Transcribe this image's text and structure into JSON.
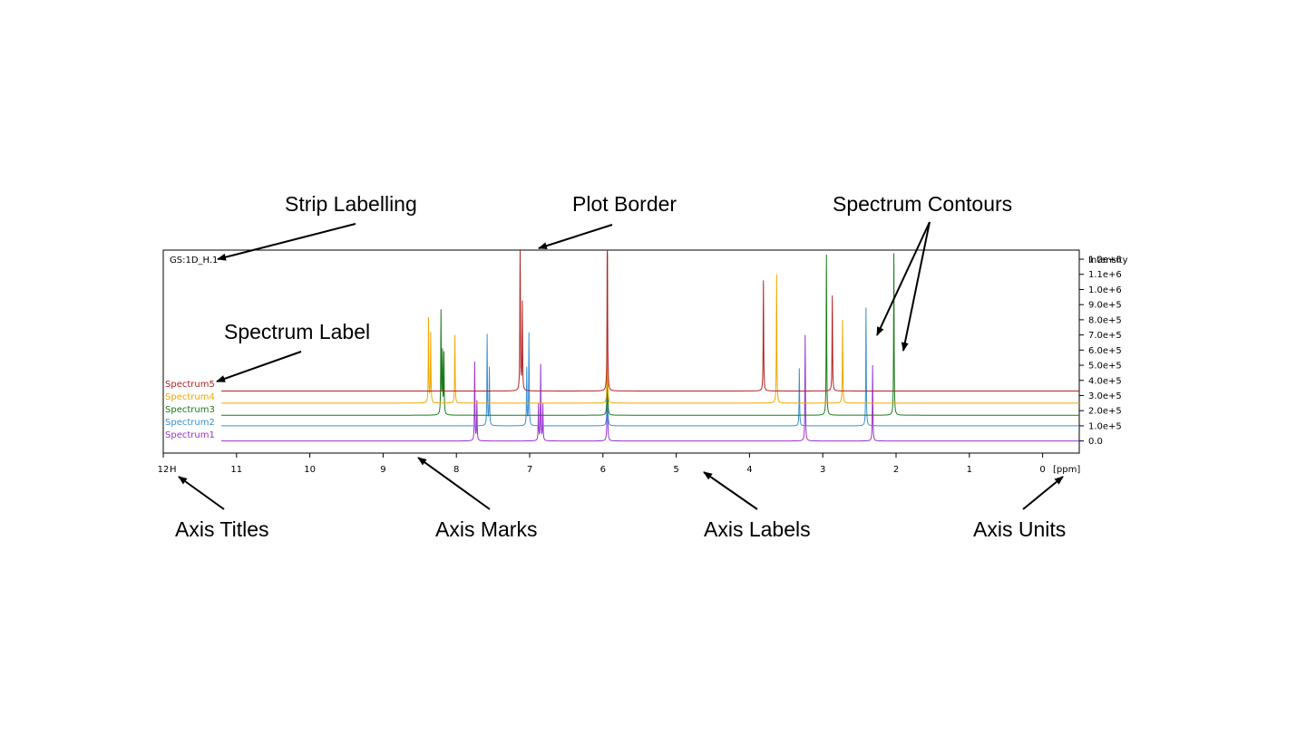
{
  "callouts": {
    "strip_labelling": "Strip Labelling",
    "plot_border": "Plot Border",
    "spectrum_contours": "Spectrum Contours",
    "spectrum_label": "Spectrum Label",
    "axis_titles": "Axis Titles",
    "axis_marks": "Axis Marks",
    "axis_labels": "Axis Labels",
    "axis_units": "Axis Units"
  },
  "plot": {
    "strip_label": "GS:1D_H.1",
    "x_axis_title": "H",
    "x_axis_unit": "[ppm]",
    "y_axis_title": "Intensity"
  },
  "chart_data": {
    "type": "line",
    "x_ticks": [
      "12",
      "11",
      "10",
      "9",
      "8",
      "7",
      "6",
      "5",
      "4",
      "3",
      "2",
      "1",
      "0"
    ],
    "y_ticks": [
      "0.0",
      "1.0e+5",
      "2.0e+5",
      "3.0e+5",
      "4.0e+5",
      "5.0e+5",
      "6.0e+5",
      "7.0e+5",
      "8.0e+5",
      "9.0e+5",
      "1.0e+6",
      "1.1e+6",
      "1.2e+6"
    ],
    "xlim": [
      12.0,
      -0.5
    ],
    "ylim": [
      -80000,
      1260000
    ],
    "x_reversed": true,
    "series": [
      {
        "name": "Spectrum1",
        "color": "#9932cc",
        "baseline": 0,
        "peaks": [
          [
            7.75,
            520000
          ],
          [
            7.72,
            260000
          ],
          [
            6.88,
            240000
          ],
          [
            6.85,
            500000
          ],
          [
            6.82,
            240000
          ],
          [
            5.94,
            600000
          ],
          [
            3.24,
            700000
          ],
          [
            2.32,
            500000
          ]
        ]
      },
      {
        "name": "Spectrum2",
        "color": "#3a8fd6",
        "baseline": 100000,
        "peaks": [
          [
            7.58,
            600000
          ],
          [
            7.55,
            380000
          ],
          [
            7.04,
            380000
          ],
          [
            7.01,
            610000
          ],
          [
            5.94,
            600000
          ],
          [
            3.32,
            380000
          ],
          [
            2.41,
            780000
          ]
        ]
      },
      {
        "name": "Spectrum3",
        "color": "#1a7a1a",
        "baseline": 170000,
        "peaks": [
          [
            8.21,
            680000
          ],
          [
            8.19,
            400000
          ],
          [
            8.17,
            400000
          ],
          [
            5.94,
            600000
          ],
          [
            2.95,
            1060000
          ],
          [
            2.03,
            1070000
          ]
        ]
      },
      {
        "name": "Spectrum4",
        "color": "#f0a800",
        "baseline": 250000,
        "peaks": [
          [
            8.38,
            560000
          ],
          [
            8.35,
            460000
          ],
          [
            8.02,
            450000
          ],
          [
            5.94,
            600000
          ],
          [
            3.63,
            850000
          ],
          [
            2.73,
            550000
          ]
        ]
      },
      {
        "name": "Spectrum5",
        "color": "#b22222",
        "baseline": 330000,
        "peaks": [
          [
            7.13,
            1030000
          ],
          [
            7.1,
            580000
          ],
          [
            5.94,
            1240000
          ],
          [
            3.81,
            730000
          ],
          [
            2.87,
            630000
          ]
        ]
      }
    ]
  }
}
